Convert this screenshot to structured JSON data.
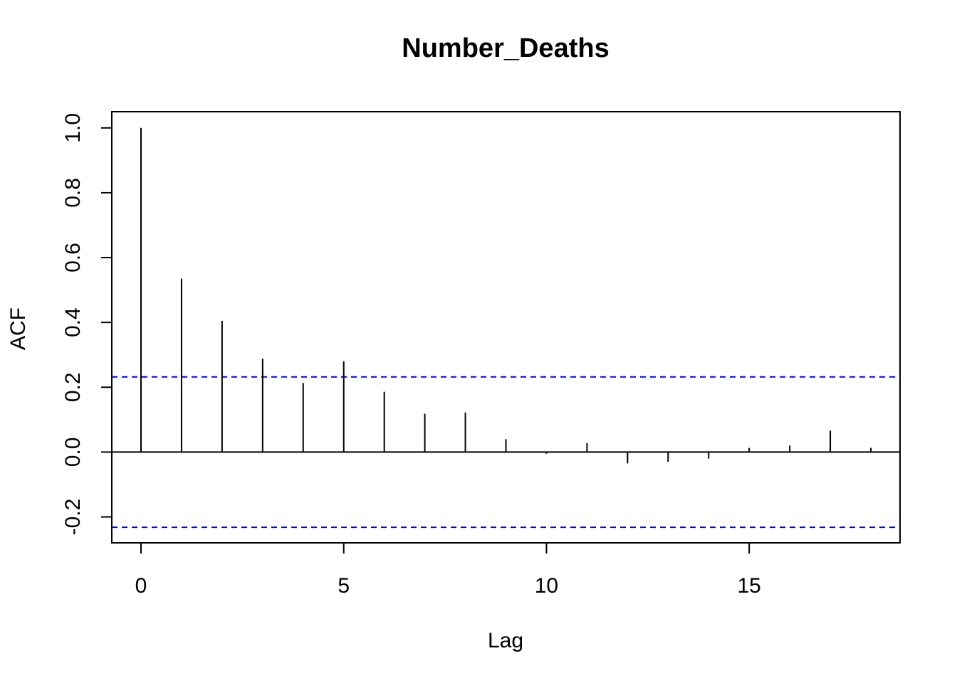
{
  "chart_data": {
    "type": "bar",
    "title": "Number_Deaths",
    "xlabel": "Lag",
    "ylabel": "ACF",
    "xlim": [
      -0.72,
      18.72
    ],
    "ylim": [
      -0.28,
      1.05
    ],
    "x_ticks": [
      0,
      5,
      10,
      15
    ],
    "x_tick_labels": [
      "0",
      "5",
      "10",
      "15"
    ],
    "y_ticks": [
      -0.2,
      0.0,
      0.2,
      0.4,
      0.6,
      0.8,
      1.0
    ],
    "y_tick_labels": [
      "-0.2",
      "0.0",
      "0.2",
      "0.4",
      "0.6",
      "0.8",
      "1.0"
    ],
    "lags": [
      0,
      1,
      2,
      3,
      4,
      5,
      6,
      7,
      8,
      9,
      10,
      11,
      12,
      13,
      14,
      15,
      16,
      17,
      18
    ],
    "acf": [
      1.0,
      0.535,
      0.405,
      0.288,
      0.213,
      0.28,
      0.186,
      0.118,
      0.122,
      0.04,
      -0.005,
      0.028,
      -0.035,
      -0.03,
      -0.02,
      0.013,
      0.02,
      0.066,
      0.013
    ],
    "confidence_band": [
      0.232,
      -0.232
    ],
    "colors": {
      "spikes": "#000000",
      "band": "#0000ff",
      "zero_line": "#000000"
    },
    "grid": false
  }
}
